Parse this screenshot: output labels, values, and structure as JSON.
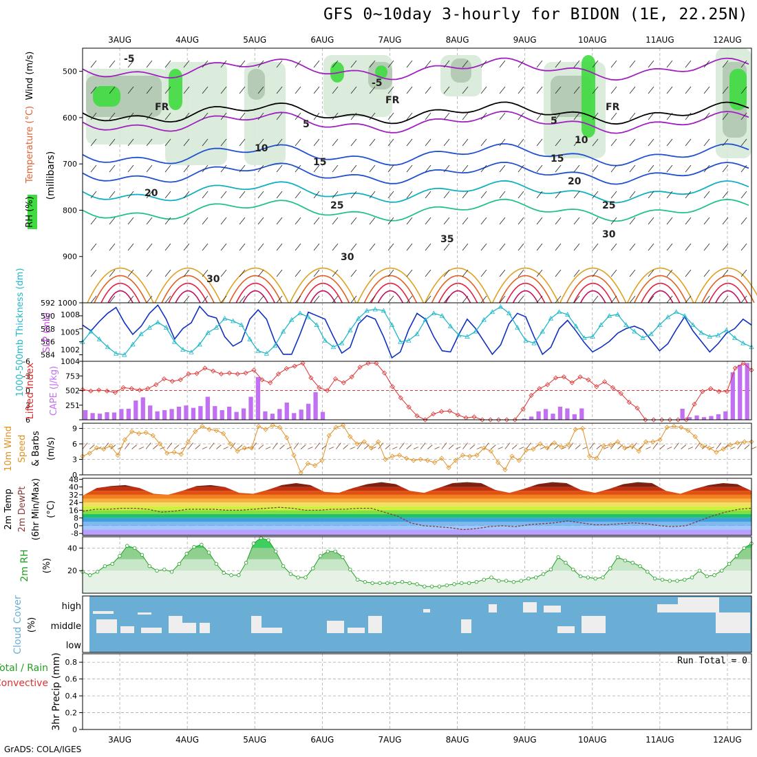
{
  "title": "GFS 0~10day 3-hourly for BIDON (1E, 22.25N)",
  "footer": "GrADS: COLA/IGES",
  "colors": {
    "rh_green": "#3fdc3f",
    "temp_purple": "#a020c0",
    "temp_blue": "#2050d0",
    "temp_cyan": "#10b0c0",
    "temp_orange": "#e0a020",
    "temp_red": "#e02040",
    "slp": "#1030c0",
    "thickness": "#20b8c8",
    "lifted": "#e03030",
    "cape": "#c070f0",
    "wind": "#e09020",
    "rh2m": "#20a020",
    "cloud": "#6aaed6"
  },
  "chart_data": [
    {
      "type": "heatmap",
      "panel": "upper-air",
      "ylabel_parts": [
        "RH (%)",
        "Temperature (°C)",
        "Wind (m/s)"
      ],
      "unit_label": "(millibars)",
      "y_ticks": [
        "500",
        "600",
        "700",
        "800",
        "900",
        "1000"
      ],
      "ylim": [
        1000,
        450
      ],
      "x_ticks_top": [
        "3AUG",
        "4AUG",
        "5AUG",
        "6AUG",
        "7AUG",
        "8AUG",
        "9AUG",
        "10AUG",
        "11AUG",
        "12AUG"
      ],
      "isotherm_labels": [
        "-5",
        "-5",
        "5",
        "5",
        "FR",
        "FR",
        "FR",
        "10",
        "10",
        "15",
        "15",
        "20",
        "20",
        "25",
        "25",
        "30",
        "30",
        "35",
        "30"
      ]
    },
    {
      "type": "line",
      "panel": "slp-thickness",
      "ylabel_left": "1000-500mb Thickness (dm)",
      "ylabel_right": "SLP (mb)",
      "left_ticks": [
        "584",
        "586",
        "588",
        "590",
        "592"
      ],
      "left_range": [
        583,
        592
      ],
      "right_ticks": [
        "1002",
        "1005",
        "1008"
      ],
      "right_range": [
        1000,
        1010
      ],
      "series": [
        {
          "name": "SLP (mb)",
          "values": [
            1006.2,
            1005.2,
            1006.8,
            1008.2,
            1009.2,
            1006.6,
            1004.6,
            1006.0,
            1008.2,
            1009.6,
            1007.2,
            1003.8,
            1005.6,
            1006.6,
            1009.4,
            1007.8,
            1007.4,
            1004.2,
            1002.6,
            1003.4,
            1007.2,
            1008.8,
            1007.2,
            1003.4,
            1001.2,
            1001.2,
            1004.6,
            1008.4,
            1007.8,
            1007.2,
            1004.2,
            1001.4,
            1002.4,
            1006.4,
            1007.8,
            1007.2,
            1004.2,
            1000.6,
            1001.6,
            1005.4,
            1008.2,
            1007.2,
            1004.2,
            1001.8,
            1001.6,
            1004.6,
            1007.2,
            1005.6,
            1003.4,
            1001.2,
            1002.8,
            1006.4,
            1008.2,
            1007.6,
            1004.2,
            1001.2,
            1002.4,
            1005.6,
            1007.0,
            1005.2,
            1003.2,
            1001.6,
            1002.4,
            1003.4,
            1004.8,
            1005.6,
            1006.0,
            1005.4,
            1003.6,
            1001.8,
            1003.0,
            1005.4,
            1007.6,
            1005.2,
            1003.4,
            1001.6,
            1003.0,
            1004.8,
            1005.6,
            1007.2,
            1006.2
          ]
        },
        {
          "name": "Thickness (dm)",
          "values": [
            586.0,
            587.6,
            586.4,
            585.2,
            584.2,
            584.0,
            585.6,
            587.2,
            588.2,
            589.0,
            588.2,
            586.0,
            584.8,
            584.4,
            585.6,
            587.4,
            588.2,
            589.6,
            589.2,
            588.6,
            586.4,
            584.6,
            584.2,
            585.4,
            587.6,
            589.4,
            590.4,
            589.8,
            588.6,
            586.2,
            585.2,
            585.8,
            587.8,
            589.6,
            590.8,
            591.0,
            590.8,
            588.6,
            586.0,
            586.2,
            587.2,
            589.4,
            590.4,
            590.0,
            588.4,
            587.0,
            586.8,
            587.6,
            589.4,
            590.6,
            591.4,
            590.4,
            588.2,
            586.2,
            585.8,
            587.6,
            589.6,
            590.6,
            590.2,
            588.4,
            586.6,
            586.8,
            588.6,
            590.0,
            590.2,
            588.6,
            587.6,
            586.6,
            587.2,
            588.6,
            589.8,
            590.6,
            590.0,
            588.6,
            587.4,
            586.8,
            587.0,
            587.8,
            586.6,
            585.8,
            585.2
          ]
        }
      ]
    },
    {
      "type": "line",
      "panel": "lifted-cape",
      "ylabel_left": "Lifted Index",
      "ylabel_right": "CAPE (J/kg)",
      "left_ticks": [
        "-6",
        "-3",
        "0",
        "3",
        "6"
      ],
      "left_range": [
        -6,
        6
      ],
      "right_ticks": [
        "251",
        "502",
        "753",
        "1004"
      ],
      "right_range": [
        0,
        1004
      ],
      "series": [
        {
          "name": "Lifted Index",
          "values": [
            -0.2,
            0.1,
            -0.1,
            0.1,
            0.4,
            -0.6,
            -0.4,
            -0.1,
            -0.4,
            -1.2,
            -2.4,
            -1.9,
            -2.2,
            -3.4,
            -3.5,
            -4.6,
            -4.0,
            -3.4,
            -3.6,
            -3.4,
            -3.6,
            -4.2,
            -2.2,
            -1.6,
            -3.4,
            -4.5,
            -5.0,
            -5.6,
            -2.6,
            -0.6,
            0.0,
            -2.4,
            -1.6,
            -2.8,
            -4.8,
            -5.6,
            -5.6,
            -3.6,
            -0.8,
            1.5,
            3.4,
            5.2,
            6.0,
            4.8,
            4.3,
            4.2,
            5.0,
            5.6,
            5.4,
            6.0,
            6.0,
            6.0,
            6.0,
            6.0,
            3.8,
            1.0,
            -0.4,
            -1.2,
            -2.6,
            -2.8,
            -1.6,
            -2.8,
            -2.2,
            -0.8,
            -1.8,
            -0.6,
            0.6,
            2.4,
            3.6,
            6.0,
            6.0,
            6.0,
            6.0,
            6.0,
            6.0,
            2.8,
            0.2,
            -0.4,
            0.2,
            0.2,
            -4.6,
            -5.6,
            -4.2
          ]
        },
        {
          "name": "CAPE (J/kg)",
          "values": [
            165,
            115,
            105,
            130,
            125,
            185,
            190,
            330,
            385,
            245,
            145,
            165,
            185,
            225,
            245,
            205,
            235,
            395,
            235,
            165,
            225,
            135,
            195,
            395,
            735,
            145,
            105,
            185,
            295,
            115,
            175,
            275,
            475,
            135,
            0,
            0,
            0,
            0,
            0,
            0,
            0,
            0,
            0,
            0,
            0,
            0,
            0,
            0,
            0,
            0,
            0,
            0,
            0,
            0,
            0,
            0,
            0,
            0,
            0,
            0,
            0,
            20,
            55,
            145,
            185,
            105,
            225,
            195,
            95,
            195,
            0,
            0,
            0,
            0,
            0,
            0,
            0,
            0,
            0,
            0,
            0,
            0,
            0,
            190,
            45,
            75,
            45,
            65,
            95,
            145,
            815,
            945,
            975
          ]
        }
      ]
    },
    {
      "type": "line",
      "panel": "wind10m",
      "ylabel": "10m Wind Speed & Barbs (m/s)",
      "y_ticks": [
        "0",
        "3",
        "6",
        "9"
      ],
      "ylim": [
        0,
        10
      ],
      "series": [
        {
          "name": "Speed",
          "values": [
            3.6,
            4.2,
            5.2,
            5.0,
            5.6,
            3.8,
            6.8,
            8.4,
            8.0,
            8.2,
            7.6,
            6.0,
            4.2,
            4.4,
            4.0,
            6.4,
            8.4,
            9.4,
            8.8,
            8.6,
            8.0,
            6.0,
            4.6,
            5.2,
            5.2,
            9.4,
            8.8,
            9.6,
            9.2,
            7.2,
            3.8,
            0.4,
            2.2,
            1.8,
            2.8,
            7.6,
            9.2,
            9.6,
            7.4,
            6.0,
            6.4,
            5.2,
            6.4,
            3.0,
            3.6,
            3.8,
            3.2,
            2.8,
            3.0,
            2.8,
            2.4,
            3.2,
            1.4,
            2.8,
            3.8,
            3.6,
            3.8,
            5.2,
            4.6,
            2.4,
            1.0,
            3.6,
            2.8,
            4.8,
            5.0,
            6.0,
            5.2,
            6.2,
            5.4,
            5.8,
            8.8,
            9.0,
            3.6,
            3.2,
            5.6,
            5.8,
            6.4,
            5.2,
            5.6,
            4.6,
            6.4,
            6.4,
            6.8,
            9.2,
            9.4,
            9.2,
            8.6,
            7.4,
            5.6,
            5.2,
            4.4,
            5.0,
            5.8,
            6.2,
            6.4,
            6.4
          ]
        }
      ]
    },
    {
      "type": "area",
      "panel": "temperature2m",
      "ylabel": "2m Temp 2m DewPt (6hr Min/Max) (°C)",
      "y_ticks": [
        "-8",
        "0",
        "8",
        "16",
        "24",
        "32",
        "40",
        "48"
      ],
      "ylim": [
        -10,
        49
      ],
      "x_day_labels": [
        "3AUG",
        "4AUG",
        "5AUG",
        "6AUG",
        "7AUG",
        "8AUG",
        "9AUG",
        "10AUG",
        "11AUG",
        "12AUG"
      ],
      "series": [
        {
          "name": "2m Temp max",
          "values": [
            31,
            39,
            41,
            42,
            39,
            33,
            32,
            36,
            41,
            42,
            40,
            34,
            33,
            37,
            42,
            44,
            42,
            35,
            34,
            39,
            43,
            45,
            43,
            36,
            34,
            39,
            44,
            45,
            44,
            37,
            34,
            38,
            43,
            45,
            44,
            37,
            34,
            38,
            43,
            45,
            44,
            36,
            33,
            38,
            42,
            44,
            43,
            36
          ]
        },
        {
          "name": "2m DewPt",
          "values": [
            15,
            17,
            17,
            18,
            18,
            17,
            14,
            15,
            17,
            17,
            17,
            16,
            16,
            17,
            18,
            19,
            18,
            16,
            16,
            17,
            17,
            18,
            18,
            14,
            10,
            3,
            0,
            -1,
            -2,
            -4,
            -3,
            -1,
            0,
            -1,
            1,
            2,
            3,
            5,
            3,
            1,
            1,
            2,
            3,
            2,
            0,
            -1,
            0,
            5,
            10,
            14,
            17,
            18
          ]
        }
      ]
    },
    {
      "type": "area",
      "panel": "rh2m",
      "ylabel": "2m RH (%)",
      "y_ticks": [
        "20",
        "40"
      ],
      "ylim": [
        0,
        50
      ],
      "series": [
        {
          "name": "2m RH",
          "values": [
            19,
            16,
            19,
            24,
            26,
            33,
            42,
            40,
            34,
            24,
            20,
            21,
            19,
            26,
            35,
            41,
            43,
            36,
            26,
            18,
            16,
            16,
            27,
            44,
            49,
            47,
            37,
            24,
            17,
            14,
            14,
            22,
            33,
            37,
            37,
            32,
            21,
            12,
            10,
            9,
            9,
            9,
            9,
            10,
            9,
            8,
            6,
            6,
            6,
            7,
            8,
            9,
            9,
            10,
            12,
            14,
            11,
            11,
            10,
            11,
            13,
            14,
            17,
            21,
            32,
            27,
            21,
            15,
            14,
            13,
            14,
            22,
            32,
            29,
            27,
            24,
            19,
            13,
            12,
            11,
            11,
            12,
            14,
            20,
            15,
            16,
            20,
            26,
            33,
            40,
            44
          ]
        }
      ]
    },
    {
      "type": "heatmap",
      "panel": "cloud-cover",
      "ylabel": "Cloud Cover (%)",
      "y_levels": [
        "high",
        "middle",
        "low"
      ]
    },
    {
      "type": "bar",
      "panel": "precip",
      "ylabel": "3hr Precip (mm)",
      "legend": [
        "Total / Rain",
        "Convective"
      ],
      "run_total_label": "Run Total = 0",
      "y_ticks": [
        "0",
        "0.2",
        "0.4",
        "0.6",
        "0.8"
      ],
      "ylim": [
        0,
        0.9
      ],
      "x_ticks_bottom": [
        "3AUG",
        "4AUG",
        "5AUG",
        "6AUG",
        "7AUG",
        "8AUG",
        "9AUG",
        "10AUG",
        "11AUG",
        "12AUG"
      ],
      "values": []
    }
  ]
}
